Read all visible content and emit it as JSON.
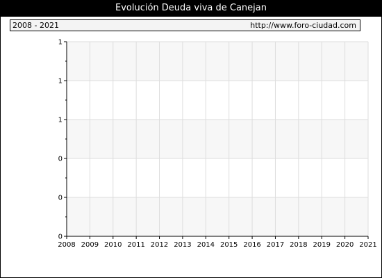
{
  "title": "Evolución Deuda viva de Canejan",
  "header": {
    "range": "2008 - 2021",
    "url": "http://www.foro-ciudad.com"
  },
  "colors": {
    "band_shaded": "#f7f7f7",
    "band_plain": "#ffffff",
    "grid": "#dddddd",
    "axis": "#000000"
  },
  "chart_data": {
    "type": "line",
    "title": "Evolución Deuda viva de Canejan",
    "xlabel": "",
    "ylabel": "",
    "x_ticks": [
      "2008",
      "2009",
      "2010",
      "2011",
      "2012",
      "2013",
      "2014",
      "2015",
      "2016",
      "2017",
      "2018",
      "2019",
      "2020",
      "2021"
    ],
    "y_tick_labels": [
      "0",
      "0",
      "0",
      "1",
      "1",
      "1"
    ],
    "series": [],
    "grid": true,
    "legend": "none"
  }
}
